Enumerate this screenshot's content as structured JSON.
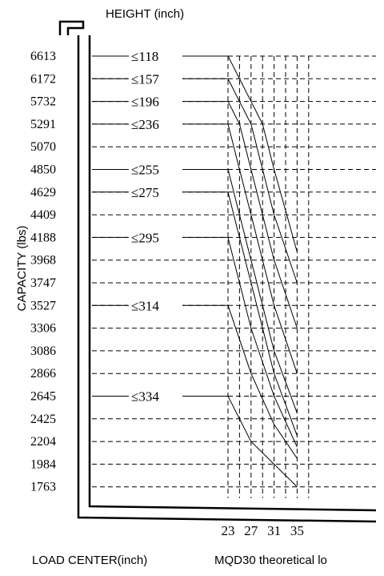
{
  "chart_data": {
    "type": "line",
    "title": "MQD30 theoretical lo",
    "top_label": "HEIGHT (inch)",
    "xlabel": "LOAD CENTER(inch)",
    "ylabel": "CAPACITY (lbs)",
    "x_ticks": [
      "23",
      "27",
      "31",
      "35"
    ],
    "y_ticks": [
      "6613",
      "6172",
      "5732",
      "5291",
      "5070",
      "4850",
      "4629",
      "4409",
      "4188",
      "3968",
      "3747",
      "3527",
      "3306",
      "3086",
      "2866",
      "2645",
      "2425",
      "2204",
      "1984",
      "1763"
    ],
    "grid": true,
    "x_range": [
      19,
      37
    ],
    "series": [
      {
        "name": "≤118",
        "height_label": "≤118",
        "y_at_23": 6613,
        "x": [
          23,
          27,
          31,
          35
        ],
        "y": [
          6613,
          5732,
          4850,
          4048
        ]
      },
      {
        "name": "≤157",
        "height_label": "≤157",
        "y_at_23": 6172,
        "x": [
          23,
          27,
          31,
          35
        ],
        "y": [
          6172,
          5291,
          4409,
          3747
        ]
      },
      {
        "name": "≤196",
        "height_label": "≤196",
        "y_at_23": 5732,
        "x": [
          23,
          27,
          31,
          35
        ],
        "y": [
          5732,
          4850,
          3968,
          3306
        ]
      },
      {
        "name": "≤236",
        "height_label": "≤236",
        "y_at_23": 5291,
        "x": [
          23,
          27,
          31,
          35
        ],
        "y": [
          5291,
          4409,
          3527,
          2866
        ]
      },
      {
        "name": "≤255",
        "height_label": "≤255",
        "y_at_23": 4850,
        "x": [
          23,
          27,
          31,
          35
        ],
        "y": [
          4850,
          3968,
          3086,
          2480
        ]
      },
      {
        "name": "≤275",
        "height_label": "≤275",
        "y_at_23": 4629,
        "x": [
          23,
          27,
          31,
          35
        ],
        "y": [
          4629,
          3747,
          2866,
          2260
        ]
      },
      {
        "name": "≤295",
        "height_label": "≤295",
        "y_at_23": 4188,
        "x": [
          23,
          27,
          31,
          35
        ],
        "y": [
          4188,
          3306,
          2645,
          2150
        ]
      },
      {
        "name": "≤314",
        "height_label": "≤314",
        "y_at_23": 3527,
        "x": [
          23,
          27,
          31,
          35
        ],
        "y": [
          3527,
          2866,
          2370,
          2040
        ]
      },
      {
        "name": "≤334",
        "height_label": "≤334",
        "y_at_23": 2645,
        "x": [
          23,
          27,
          31,
          35
        ],
        "y": [
          2645,
          2204,
          1984,
          1763
        ]
      }
    ]
  }
}
